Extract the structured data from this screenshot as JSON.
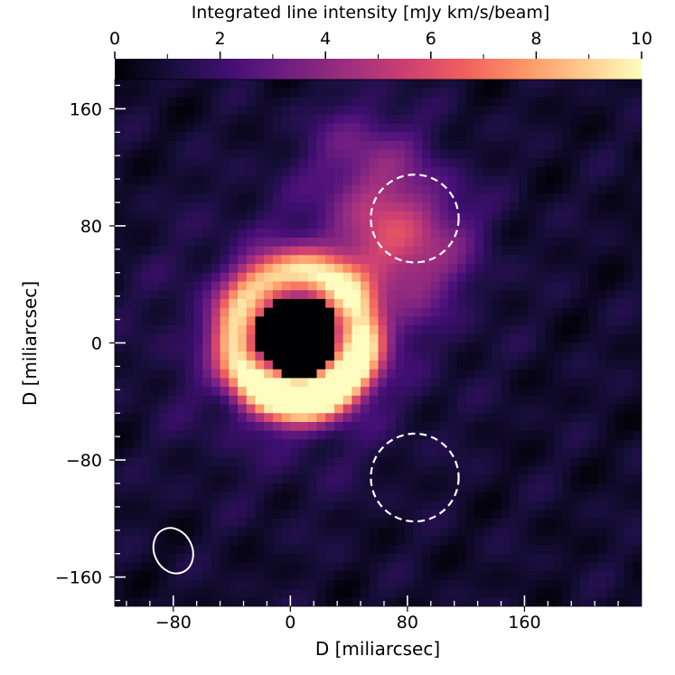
{
  "chart_data": {
    "type": "heatmap",
    "title": "",
    "xlabel": "D [miliarcsec]",
    "ylabel": "D [miliarcsec]",
    "xlim": [
      -120,
      240
    ],
    "ylim": [
      -180,
      180
    ],
    "x_ticks": [
      -80,
      0,
      80,
      160
    ],
    "x_tick_labels": [
      "−80",
      "0",
      "80",
      "160"
    ],
    "y_ticks": [
      160,
      80,
      0,
      -80,
      -160
    ],
    "y_tick_labels": [
      "160",
      "80",
      "0",
      "−80",
      "−160"
    ],
    "colorbar": {
      "label": "Integrated line intensity [mJy km/s/beam]",
      "range": [
        0,
        10
      ],
      "ticks": [
        0,
        2,
        4,
        6,
        8,
        10
      ],
      "tick_labels": [
        "0",
        "2",
        "4",
        "6",
        "8",
        "10"
      ],
      "colormap": "magma",
      "position": "top"
    },
    "colormap_stops": [
      "#000004",
      "#180f3d",
      "#440f76",
      "#721f81",
      "#9e2f7f",
      "#cd4071",
      "#f1605d",
      "#fd9668",
      "#feca8d",
      "#fcfdbf"
    ],
    "emission": {
      "ring": {
        "center": [
          5,
          5
        ],
        "inner_radius": 30,
        "outer_radius": 58,
        "peak": 10
      },
      "central_hole": {
        "center": [
          5,
          5
        ],
        "radius": 28,
        "value": 0
      },
      "extension_ne": {
        "center": [
          75,
          70
        ],
        "peak": 4.5
      },
      "extension_n": {
        "center": [
          50,
          130
        ],
        "peak": 2.2
      },
      "background_level": 0.8
    },
    "apertures": [
      {
        "center": [
          85,
          85
        ],
        "radius": 30,
        "style": "dashed",
        "color": "#ffffff"
      },
      {
        "center": [
          85,
          -92
        ],
        "radius": 30,
        "style": "dashed",
        "color": "#ffffff"
      }
    ],
    "beam": {
      "center": [
        -80,
        -142
      ],
      "major": 16,
      "minor": 13,
      "angle_deg": -25,
      "color": "#ffffff"
    },
    "grid": false
  }
}
